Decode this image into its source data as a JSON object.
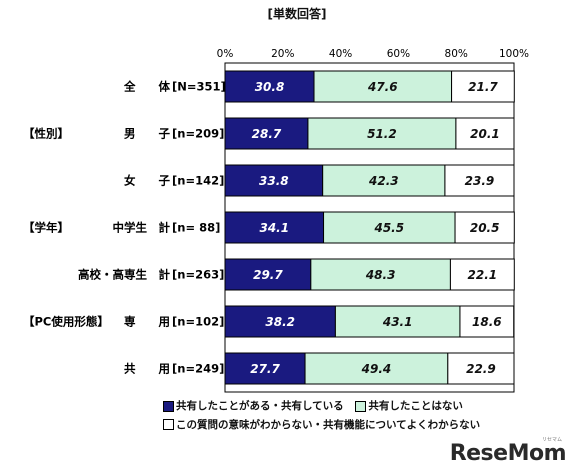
{
  "unit_label": "[単数回答]",
  "chart_data": {
    "type": "bar",
    "stacked": true,
    "orientation": "horizontal",
    "xlim": [
      0,
      100
    ],
    "x_ticks": [
      "0%",
      "20%",
      "40%",
      "60%",
      "80%",
      "100%"
    ],
    "rows": [
      {
        "group": "",
        "label": "全　　体",
        "n": "[N=351]"
      },
      {
        "group": "【性別】",
        "label": "男　　子",
        "n": "[n=209]"
      },
      {
        "group": "",
        "label": "女　　子",
        "n": "[n=142]"
      },
      {
        "group": "【学年】",
        "label": "中学生　計",
        "n": "[n= 88]"
      },
      {
        "group": "",
        "label": "高校・高専生　計",
        "n": "[n=263]"
      },
      {
        "group": "【PC使用形態】",
        "label": "専　　用",
        "n": "[n=102]"
      },
      {
        "group": "",
        "label": "共　　用",
        "n": "[n=249]"
      }
    ],
    "series": [
      {
        "name": "共有したことがある・共有している",
        "color": "#1a1a80",
        "label_color": "#ffffff",
        "values": [
          30.8,
          28.7,
          33.8,
          34.1,
          29.7,
          38.2,
          27.7
        ]
      },
      {
        "name": "共有したことはない",
        "color": "#ccf2dc",
        "label_color": "#111111",
        "values": [
          47.6,
          51.2,
          42.3,
          45.5,
          48.3,
          43.1,
          49.4
        ]
      },
      {
        "name": "この質問の意味がわからない・共有機能についてよくわからない",
        "color": "#ffffff",
        "label_color": "#111111",
        "values": [
          21.7,
          20.1,
          23.9,
          20.5,
          22.1,
          18.6,
          22.9
        ]
      }
    ]
  },
  "watermark": "ReseMom",
  "watermark_sub": "リセマム"
}
